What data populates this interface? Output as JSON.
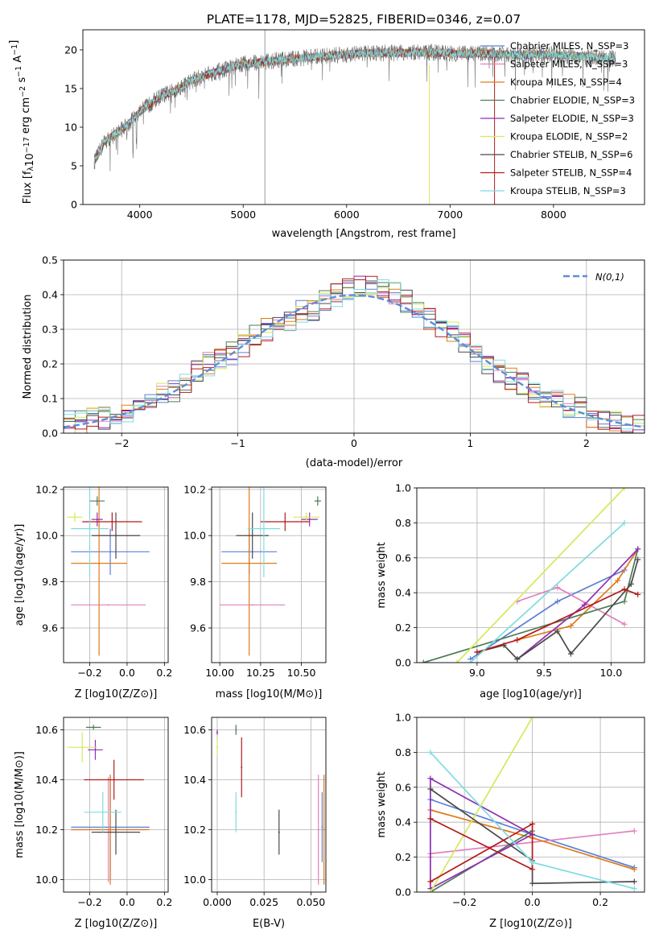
{
  "chart_data": [
    {
      "id": "spectrum",
      "type": "line",
      "title": "PLATE=1178, MJD=52825, FIBERID=0346, z=0.07",
      "xlabel": "wavelength [Angstrom, rest frame]",
      "ylabel": "Flux [f_λ 10^-17 erg cm^-2 s^-1 A^-1]",
      "xlim": [
        3450,
        8880
      ],
      "ylim": [
        0,
        22.6
      ],
      "xticks": [
        4000,
        5000,
        6000,
        7000,
        8000
      ],
      "yticks": [
        0,
        5,
        10,
        15,
        20
      ],
      "grid": false,
      "legend_position": "top-right",
      "series_data_shape": {
        "x": [
          3560,
          3600,
          3650,
          3700,
          3800,
          3900,
          4000,
          4100,
          4200,
          4300,
          4500,
          4700,
          5000,
          5300,
          5600,
          5900,
          6200,
          6500,
          6800,
          7100,
          7400,
          7700,
          8000,
          8300,
          8600
        ],
        "y": [
          5.5,
          6.5,
          8,
          8.5,
          9.5,
          10.5,
          12,
          13,
          14,
          14.5,
          16,
          17,
          18.2,
          18.6,
          19,
          19.3,
          19.6,
          19.6,
          19.7,
          19.5,
          19.5,
          19.3,
          19.4,
          19.1,
          18.9
        ]
      },
      "series": [
        {
          "name": "Chabrier MILES, N_SSP=3",
          "color": "#5b7fd6"
        },
        {
          "name": "Salpeter MILES, N_SSP=3",
          "color": "#e080c0"
        },
        {
          "name": "Kroupa MILES, N_SSP=4",
          "color": "#e07a18"
        },
        {
          "name": "Chabrier ELODIE, N_SSP=3",
          "color": "#4c7c55"
        },
        {
          "name": "Salpeter ELODIE, N_SSP=3",
          "color": "#8f2fb3"
        },
        {
          "name": "Kroupa ELODIE, N_SSP=2",
          "color": "#d6e85a"
        },
        {
          "name": "Chabrier STELIB, N_SSP=6",
          "color": "#4a4a4a"
        },
        {
          "name": "Salpeter STELIB, N_SSP=4",
          "color": "#b31b1b"
        },
        {
          "name": "Kroupa STELIB, N_SSP=3",
          "color": "#7fdbe0"
        }
      ]
    },
    {
      "id": "residuals",
      "type": "histogram",
      "xlabel": "(data-model)/error",
      "ylabel": "Normed distribution",
      "xlim": [
        -2.5,
        2.5
      ],
      "ylim": [
        0,
        0.5
      ],
      "xticks": [
        -2,
        -1,
        0,
        1,
        2
      ],
      "yticks": [
        0.0,
        0.1,
        0.2,
        0.3,
        0.4,
        0.5
      ],
      "grid": true,
      "legend": [
        "N(0,1)"
      ],
      "legend_position": "top-right",
      "reference_curve": {
        "name": "N(0,1)",
        "mean": 0,
        "sigma": 1,
        "color": "#5b8ed6"
      },
      "bins": [
        -2.5,
        -2.4,
        -2.3,
        -2.2,
        -2.1,
        -2.0,
        -1.9,
        -1.8,
        -1.7,
        -1.6,
        -1.5,
        -1.4,
        -1.3,
        -1.2,
        -1.1,
        -1.0,
        -0.9,
        -0.8,
        -0.7,
        -0.6,
        -0.5,
        -0.4,
        -0.3,
        -0.2,
        -0.1,
        0.0,
        0.1,
        0.2,
        0.3,
        0.4,
        0.5,
        0.6,
        0.7,
        0.8,
        0.9,
        1.0,
        1.1,
        1.2,
        1.3,
        1.4,
        1.5,
        1.6,
        1.7,
        1.8,
        1.9,
        2.0,
        2.1,
        2.2,
        2.3,
        2.4,
        2.5
      ],
      "values_envelope": [
        0.03,
        0.03,
        0.04,
        0.04,
        0.04,
        0.05,
        0.07,
        0.09,
        0.11,
        0.12,
        0.15,
        0.18,
        0.2,
        0.22,
        0.23,
        0.25,
        0.28,
        0.3,
        0.32,
        0.33,
        0.35,
        0.36,
        0.38,
        0.4,
        0.42,
        0.43,
        0.43,
        0.41,
        0.4,
        0.38,
        0.35,
        0.33,
        0.31,
        0.29,
        0.26,
        0.23,
        0.2,
        0.18,
        0.16,
        0.14,
        0.12,
        0.11,
        0.09,
        0.08,
        0.07,
        0.05,
        0.04,
        0.03,
        0.03,
        0.02
      ]
    },
    {
      "id": "Z_age",
      "type": "errorbar",
      "xlabel": "Z [log10(Z/Z⊙)]",
      "ylabel": "age [log10(age/yr)]",
      "xlim": [
        -0.34,
        0.22
      ],
      "ylim": [
        9.45,
        10.21
      ],
      "xticks": [
        -0.2,
        0.0,
        0.2
      ],
      "yticks": [
        9.6,
        9.8,
        10.0,
        10.2
      ],
      "grid": true,
      "points": [
        {
          "color": "#5b7fd6",
          "x": -0.09,
          "xerr": 0.21,
          "y": 9.93,
          "yerr": 0.1
        },
        {
          "color": "#e080c0",
          "x": -0.1,
          "xerr": 0.2,
          "y": 9.7,
          "yerr": 0.0
        },
        {
          "color": "#e07a18",
          "x": -0.15,
          "xerr": 0.15,
          "y": 9.88,
          "yerr": 0.4
        },
        {
          "color": "#4c7c55",
          "x": -0.16,
          "xerr": 0.04,
          "y": 10.15,
          "yerr": 0.02
        },
        {
          "color": "#8f2fb3",
          "x": -0.16,
          "xerr": 0.03,
          "y": 10.07,
          "yerr": 0.03
        },
        {
          "color": "#d6e85a",
          "x": -0.28,
          "xerr": 0.04,
          "y": 10.08,
          "yerr": 0.02
        },
        {
          "color": "#4a4a4a",
          "x": -0.06,
          "xerr": 0.13,
          "y": 10.0,
          "yerr": 0.1
        },
        {
          "color": "#b31b1b",
          "x": -0.08,
          "xerr": 0.16,
          "y": 10.06,
          "yerr": 0.04
        },
        {
          "color": "#7fdbe0",
          "x": -0.2,
          "xerr": 0.1,
          "y": 10.03,
          "yerr": 0.21
        }
      ]
    },
    {
      "id": "mass_age",
      "type": "errorbar",
      "xlabel": "mass [log10(M/M⊙)]",
      "ylabel": "",
      "xlim": [
        9.95,
        10.65
      ],
      "ylim": [
        9.45,
        10.21
      ],
      "xticks": [
        10.0,
        10.25,
        10.5
      ],
      "yticks": [
        9.6,
        9.8,
        10.0,
        10.2
      ],
      "grid": true,
      "points": [
        {
          "color": "#5b7fd6",
          "x": 10.18,
          "xerr": 0.17,
          "y": 9.93,
          "yerr": 0.1
        },
        {
          "color": "#e080c0",
          "x": 10.2,
          "xerr": 0.2,
          "y": 9.7,
          "yerr": 0.0
        },
        {
          "color": "#e07a18",
          "x": 10.18,
          "xerr": 0.17,
          "y": 9.88,
          "yerr": 0.4
        },
        {
          "color": "#4c7c55",
          "x": 10.6,
          "xerr": 0.02,
          "y": 10.15,
          "yerr": 0.02
        },
        {
          "color": "#8f2fb3",
          "x": 10.55,
          "xerr": 0.05,
          "y": 10.07,
          "yerr": 0.03
        },
        {
          "color": "#d6e85a",
          "x": 10.53,
          "xerr": 0.08,
          "y": 10.08,
          "yerr": 0.02
        },
        {
          "color": "#4a4a4a",
          "x": 10.2,
          "xerr": 0.1,
          "y": 10.0,
          "yerr": 0.1
        },
        {
          "color": "#b31b1b",
          "x": 10.4,
          "xerr": 0.15,
          "y": 10.06,
          "yerr": 0.04
        },
        {
          "color": "#7fdbe0",
          "x": 10.27,
          "xerr": 0.1,
          "y": 10.03,
          "yerr": 0.21
        }
      ]
    },
    {
      "id": "age_weight",
      "type": "line",
      "xlabel": "age [log10(age/yr)]",
      "ylabel": "mass weight",
      "xlim": [
        8.55,
        10.25
      ],
      "ylim": [
        0,
        1
      ],
      "xticks": [
        9.0,
        9.5,
        10.0
      ],
      "yticks": [
        0.0,
        0.2,
        0.4,
        0.6,
        0.8,
        1.0
      ],
      "grid": true,
      "series": [
        {
          "color": "#5b7fd6",
          "x": [
            8.95,
            9.6,
            10.1
          ],
          "y": [
            0.02,
            0.35,
            0.53
          ]
        },
        {
          "color": "#e080c0",
          "x": [
            9.3,
            9.6,
            10.1
          ],
          "y": [
            0.35,
            0.43,
            0.22
          ]
        },
        {
          "color": "#e07a18",
          "x": [
            9.3,
            9.7,
            10.05,
            10.2
          ],
          "y": [
            0.13,
            0.21,
            0.47,
            0.65
          ]
        },
        {
          "color": "#4c7c55",
          "x": [
            8.6,
            10.1,
            10.2
          ],
          "y": [
            0.0,
            0.35,
            0.65
          ]
        },
        {
          "color": "#8f2fb3",
          "x": [
            9.3,
            9.8,
            10.2
          ],
          "y": [
            0.02,
            0.33,
            0.65
          ]
        },
        {
          "color": "#d6e85a",
          "x": [
            8.85,
            10.1
          ],
          "y": [
            0.0,
            1.0
          ]
        },
        {
          "color": "#4a4a4a",
          "x": [
            9.0,
            9.2,
            9.3,
            9.6,
            9.7,
            10.15,
            10.2
          ],
          "y": [
            0.06,
            0.1,
            0.02,
            0.18,
            0.05,
            0.45,
            0.59
          ]
        },
        {
          "color": "#b31b1b",
          "x": [
            9.0,
            9.3,
            10.1,
            10.2
          ],
          "y": [
            0.06,
            0.13,
            0.42,
            0.39
          ]
        },
        {
          "color": "#7fdbe0",
          "x": [
            8.95,
            10.1
          ],
          "y": [
            0.0,
            0.8
          ]
        }
      ]
    },
    {
      "id": "Z_mass",
      "type": "errorbar",
      "xlabel": "Z [log10(Z/Z⊙)]",
      "ylabel": "mass [log10(M/M⊙)]",
      "xlim": [
        -0.34,
        0.22
      ],
      "ylim": [
        9.95,
        10.65
      ],
      "xticks": [
        -0.2,
        0.0,
        0.2
      ],
      "yticks": [
        10.0,
        10.2,
        10.4,
        10.6
      ],
      "grid": true,
      "points": [
        {
          "color": "#5b7fd6",
          "x": -0.09,
          "xerr": 0.21,
          "y": 10.21,
          "yerr": 0.21
        },
        {
          "color": "#e080c0",
          "x": -0.1,
          "xerr": 0.2,
          "y": 10.2,
          "yerr": 0.21
        },
        {
          "color": "#e07a18",
          "x": -0.09,
          "xerr": 0.21,
          "y": 10.2,
          "yerr": 0.22
        },
        {
          "color": "#4c7c55",
          "x": -0.18,
          "xerr": 0.04,
          "y": 10.61,
          "yerr": 0.01
        },
        {
          "color": "#8f2fb3",
          "x": -0.17,
          "xerr": 0.04,
          "y": 10.52,
          "yerr": 0.04
        },
        {
          "color": "#d6e85a",
          "x": -0.24,
          "xerr": 0.08,
          "y": 10.53,
          "yerr": 0.06
        },
        {
          "color": "#4a4a4a",
          "x": -0.06,
          "xerr": 0.13,
          "y": 10.19,
          "yerr": 0.09
        },
        {
          "color": "#b31b1b",
          "x": -0.07,
          "xerr": 0.16,
          "y": 10.4,
          "yerr": 0.08
        },
        {
          "color": "#7fdbe0",
          "x": -0.13,
          "xerr": 0.1,
          "y": 10.27,
          "yerr": 0.08
        }
      ]
    },
    {
      "id": "ebv_mass",
      "type": "errorbar",
      "xlabel": "E(B-V)",
      "ylabel": "",
      "xlim": [
        -0.003,
        0.058
      ],
      "ylim": [
        9.95,
        10.65
      ],
      "xticks": [
        0.0,
        0.025,
        0.05
      ],
      "xtick_labels": [
        "0.000",
        "0.025",
        "0.050"
      ],
      "yticks": [
        10.0,
        10.2,
        10.4,
        10.6
      ],
      "grid": true,
      "points": [
        {
          "color": "#5b7fd6",
          "x": 0.056,
          "xerr": 0,
          "y": 10.21,
          "yerr": 0.14
        },
        {
          "color": "#e080c0",
          "x": 0.054,
          "xerr": 0,
          "y": 10.2,
          "yerr": 0.22
        },
        {
          "color": "#e07a18",
          "x": 0.057,
          "xerr": 0,
          "y": 10.2,
          "yerr": 0.22
        },
        {
          "color": "#4c7c55",
          "x": 0.01,
          "xerr": 0,
          "y": 10.6,
          "yerr": 0.02
        },
        {
          "color": "#8f2fb3",
          "x": 0.0,
          "xerr": 0,
          "y": 10.59,
          "yerr": 0.01
        },
        {
          "color": "#d6e85a",
          "x": 0.0,
          "xerr": 0,
          "y": 10.53,
          "yerr": 0.03
        },
        {
          "color": "#4a4a4a",
          "x": 0.033,
          "xerr": 0,
          "y": 10.19,
          "yerr": 0.09
        },
        {
          "color": "#b31b1b",
          "x": 0.013,
          "xerr": 0,
          "y": 10.45,
          "yerr": 0.12
        },
        {
          "color": "#7fdbe0",
          "x": 0.01,
          "xerr": 0,
          "y": 10.27,
          "yerr": 0.08
        }
      ]
    },
    {
      "id": "Z_weight",
      "type": "line",
      "xlabel": "Z [log10(Z/Z⊙)]",
      "ylabel": "mass weight",
      "xlim": [
        -0.34,
        0.33
      ],
      "ylim": [
        0,
        1
      ],
      "xticks": [
        -0.2,
        0.0,
        0.2
      ],
      "yticks": [
        0.0,
        0.2,
        0.4,
        0.6,
        0.8,
        1.0
      ],
      "grid": true,
      "series": [
        {
          "color": "#5b7fd6",
          "x": [
            -0.3,
            0.0,
            0.3
          ],
          "y": [
            0.53,
            0.33,
            0.14
          ]
        },
        {
          "color": "#e080c0",
          "x": [
            -0.3,
            -0.3,
            0.3
          ],
          "y": [
            0.2,
            0.22,
            0.35
          ]
        },
        {
          "color": "#e07a18",
          "x": [
            -0.3,
            0.0,
            0.3
          ],
          "y": [
            0.47,
            0.31,
            0.13
          ]
        },
        {
          "color": "#4c7c55",
          "x": [
            -0.3,
            0.0
          ],
          "y": [
            0.0,
            0.35
          ]
        },
        {
          "color": "#8f2fb3",
          "x": [
            -0.3,
            -0.3,
            0.0,
            -0.3
          ],
          "y": [
            0.65,
            0.02,
            0.33,
            0.65
          ]
        },
        {
          "color": "#d6e85a",
          "x": [
            -0.3,
            0.0
          ],
          "y": [
            0.0,
            1.0
          ]
        },
        {
          "color": "#4a4a4a",
          "x": [
            -0.3,
            0.0,
            0.0,
            0.3
          ],
          "y": [
            0.59,
            0.18,
            0.05,
            0.06
          ]
        },
        {
          "color": "#b31b1b",
          "x": [
            -0.3,
            0.0,
            0.0,
            -0.3
          ],
          "y": [
            0.42,
            0.13,
            0.39,
            0.06
          ]
        },
        {
          "color": "#7fdbe0",
          "x": [
            -0.3,
            0.0,
            0.3
          ],
          "y": [
            0.8,
            0.17,
            0.02
          ]
        }
      ]
    }
  ]
}
